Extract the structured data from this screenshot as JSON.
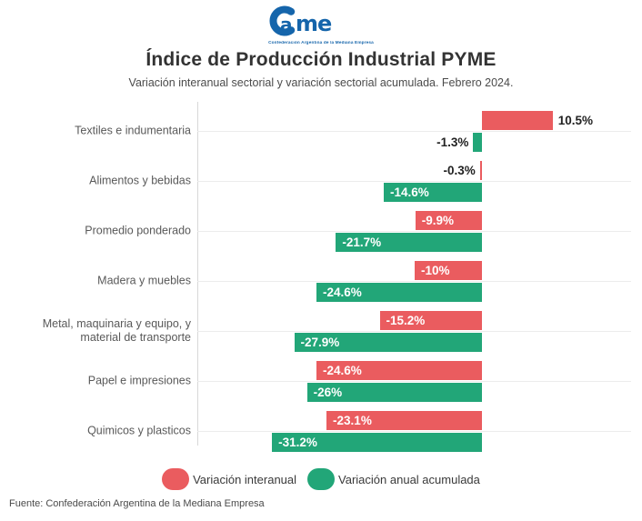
{
  "logo": {
    "wordmark_c": "C",
    "wordmark_rest": "ame",
    "tagline": "Confederación Argentina de la Mediana Empresa",
    "color": "#1565ab"
  },
  "header": {
    "title": "Índice de Producción Industrial PYME",
    "subtitle": "Variación interanual sectorial y variación sectorial acumulada. Febrero 2024."
  },
  "chart_data": {
    "type": "bar",
    "orientation": "horizontal",
    "title": "Índice de Producción Industrial PYME",
    "categories": [
      "Textiles e indumentaria",
      "Alimentos y bebidas",
      "Promedio ponderado",
      "Madera y muebles",
      "Metal, maquinaria y equipo, y material de transporte",
      "Papel e impresiones",
      "Quimicos y plasticos"
    ],
    "series": [
      {
        "name": "Variación interanual",
        "color": "#ea5c5f",
        "values": [
          10.5,
          -0.3,
          -9.9,
          -10,
          -15.2,
          -24.6,
          -23.1
        ],
        "labels": [
          "10.5%",
          "-0.3%",
          "-9.9%",
          "-10%",
          "-15.2%",
          "-24.6%",
          "-23.1%"
        ]
      },
      {
        "name": "Variación anual acumulada",
        "color": "#22a678",
        "values": [
          -1.3,
          -14.6,
          -21.7,
          -24.6,
          -27.9,
          -26,
          -31.2
        ],
        "labels": [
          "-1.3%",
          "-14.6%",
          "-21.7%",
          "-24.6%",
          "-27.9%",
          "-26%",
          "-31.2%"
        ]
      }
    ],
    "xlim": [
      -42.3,
      22.2
    ],
    "zero_baseline": true,
    "grid": "category-lines",
    "legend_position": "bottom"
  },
  "footer": {
    "source": "Fuente: Confederación Argentina de la Mediana Empresa"
  }
}
